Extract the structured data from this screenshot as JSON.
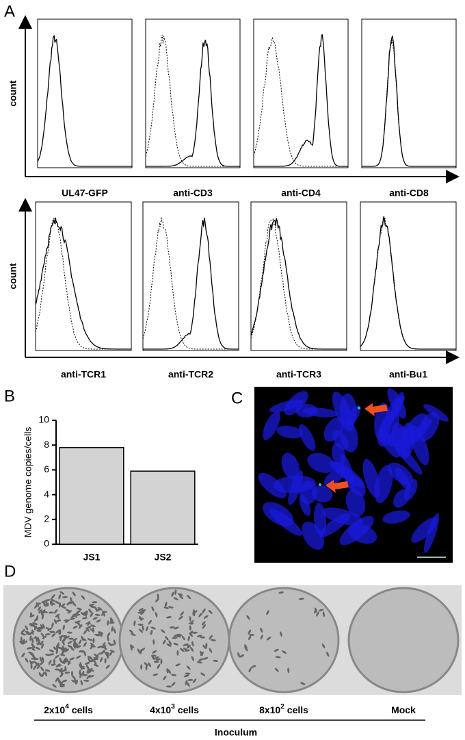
{
  "panel_a": {
    "label": "A",
    "y_axis_label": "count",
    "row1": [
      "UL47-GFP",
      "anti-CD3",
      "anti-CD4",
      "anti-CD8"
    ],
    "row2": [
      "anti-TCR1",
      "anti-TCR2",
      "anti-TCR3",
      "anti-Bu1"
    ]
  },
  "panel_c": {
    "label": "C"
  },
  "panel_d": {
    "label": "D",
    "plates": [
      {
        "base": "2x10",
        "exp": "4",
        "unit": "cells"
      },
      {
        "base": "4x10",
        "exp": "3",
        "unit": "cells"
      },
      {
        "base": "8x10",
        "exp": "2",
        "unit": "cells"
      },
      {
        "base": "Mock"
      }
    ],
    "group_label": "Inoculum"
  },
  "chart_data": {
    "type": "bar",
    "panel_label": "B",
    "y_label": "MDV genome copies/cells",
    "categories": [
      "JS1",
      "JS2"
    ],
    "values": [
      7.8,
      5.9
    ],
    "color": "#d3d3d3",
    "ylim": [
      0,
      10
    ],
    "yticks": [
      0,
      2,
      4,
      6,
      8,
      10
    ]
  }
}
